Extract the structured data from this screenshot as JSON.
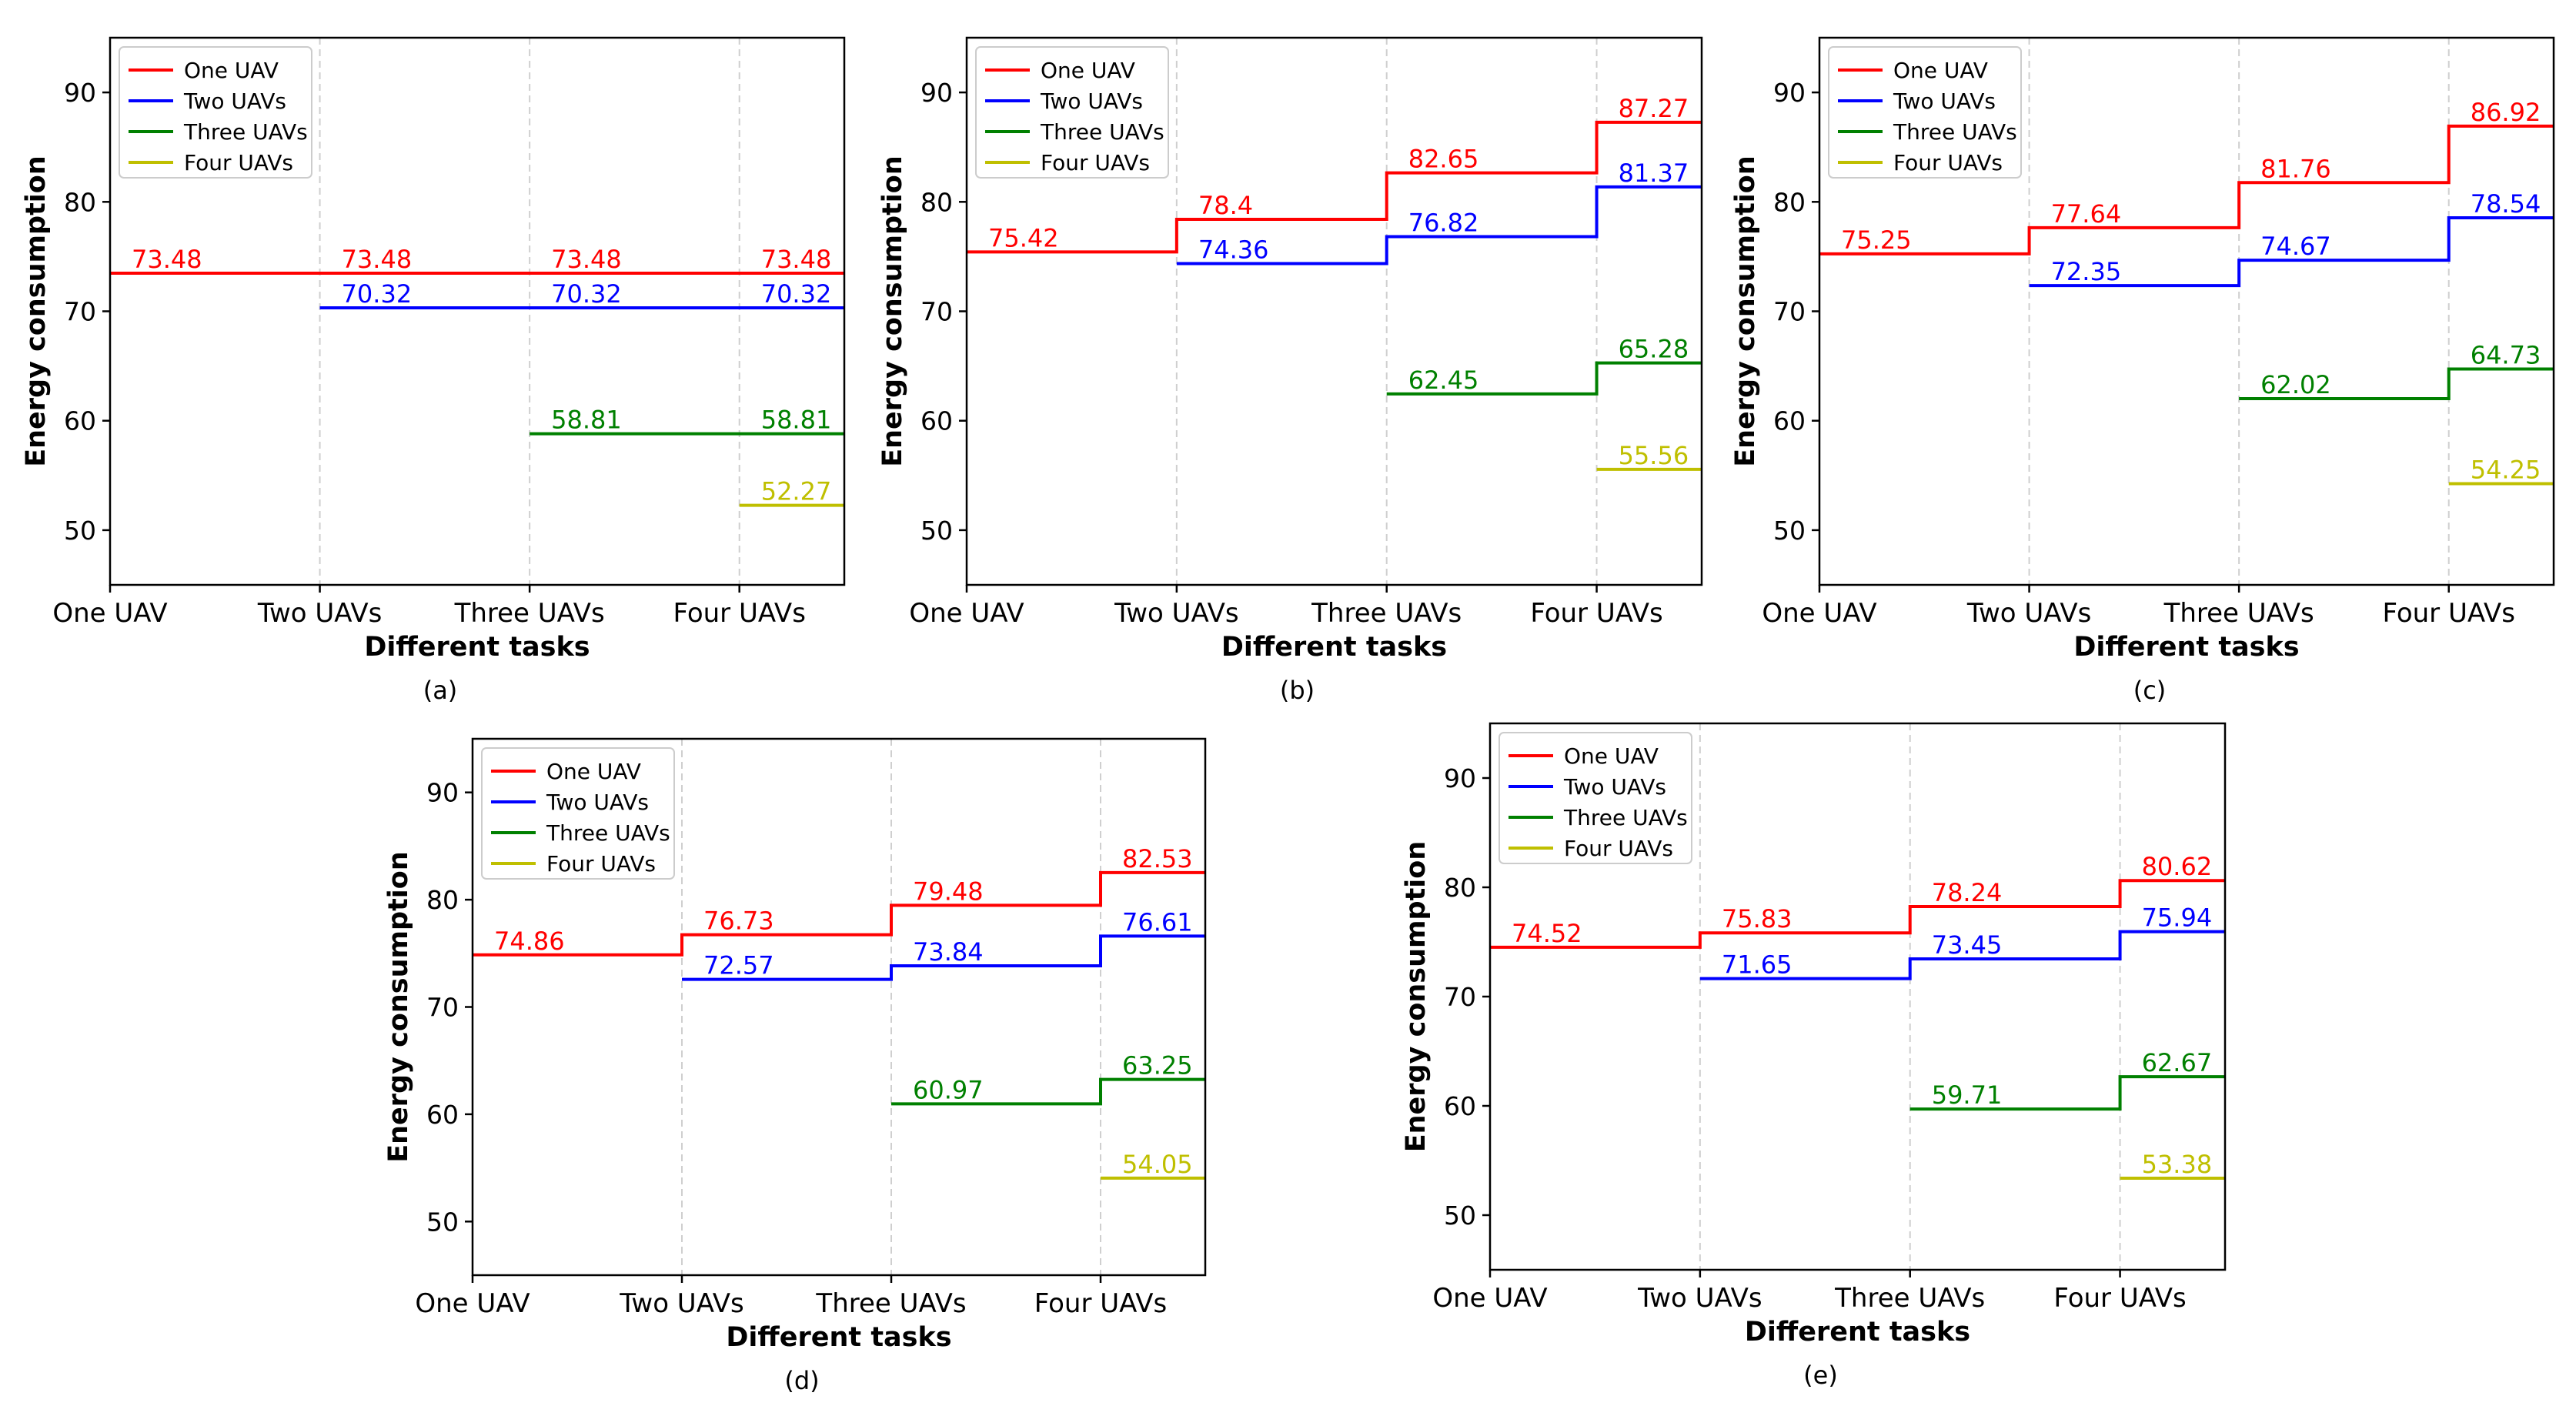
{
  "chart_data": [
    {
      "type": "line",
      "subtitle": "(a)",
      "xlabel": "Different tasks",
      "ylabel": "Energy consumption",
      "categories": [
        "One UAV",
        "Two UAVs",
        "Three UAVs",
        "Four UAVs"
      ],
      "yticks": [
        50,
        60,
        70,
        80,
        90
      ],
      "ylim": [
        45,
        95
      ],
      "legend": "top-left",
      "series": [
        {
          "name": "One UAV",
          "color": "#ff0000",
          "values": [
            73.48,
            73.48,
            73.48,
            73.48
          ],
          "labels": [
            "73.48",
            "73.48",
            "73.48",
            "73.48"
          ]
        },
        {
          "name": "Two UAVs",
          "color": "#0000ff",
          "values": [
            null,
            70.32,
            70.32,
            70.32
          ],
          "labels": [
            null,
            "70.32",
            "70.32",
            "70.32"
          ]
        },
        {
          "name": "Three UAVs",
          "color": "#008000",
          "values": [
            null,
            null,
            58.81,
            58.81
          ],
          "labels": [
            null,
            null,
            "58.81",
            "58.81"
          ]
        },
        {
          "name": "Four UAVs",
          "color": "#bfbf00",
          "values": [
            null,
            null,
            null,
            52.27
          ],
          "labels": [
            null,
            null,
            null,
            "52.27"
          ]
        }
      ]
    },
    {
      "type": "line",
      "subtitle": "(b)",
      "xlabel": "Different tasks",
      "ylabel": "Energy consumption",
      "categories": [
        "One UAV",
        "Two UAVs",
        "Three UAVs",
        "Four UAVs"
      ],
      "yticks": [
        50,
        60,
        70,
        80,
        90
      ],
      "ylim": [
        45,
        95
      ],
      "legend": "top-left",
      "series": [
        {
          "name": "One UAV",
          "color": "#ff0000",
          "values": [
            75.42,
            78.4,
            82.65,
            87.27
          ],
          "labels": [
            "75.42",
            "78.4",
            "82.65",
            "87.27"
          ]
        },
        {
          "name": "Two UAVs",
          "color": "#0000ff",
          "values": [
            null,
            74.36,
            76.82,
            81.37
          ],
          "labels": [
            null,
            "74.36",
            "76.82",
            "81.37"
          ]
        },
        {
          "name": "Three UAVs",
          "color": "#008000",
          "values": [
            null,
            null,
            62.45,
            65.28
          ],
          "labels": [
            null,
            null,
            "62.45",
            "65.28"
          ]
        },
        {
          "name": "Four UAVs",
          "color": "#bfbf00",
          "values": [
            null,
            null,
            null,
            55.56
          ],
          "labels": [
            null,
            null,
            null,
            "55.56"
          ]
        }
      ]
    },
    {
      "type": "line",
      "subtitle": "(c)",
      "xlabel": "Different tasks",
      "ylabel": "Energy consumption",
      "categories": [
        "One UAV",
        "Two UAVs",
        "Three UAVs",
        "Four UAVs"
      ],
      "yticks": [
        50,
        60,
        70,
        80,
        90
      ],
      "ylim": [
        45,
        95
      ],
      "legend": "top-left",
      "series": [
        {
          "name": "One UAV",
          "color": "#ff0000",
          "values": [
            75.25,
            77.64,
            81.76,
            86.92
          ],
          "labels": [
            "75.25",
            "77.64",
            "81.76",
            "86.92"
          ]
        },
        {
          "name": "Two UAVs",
          "color": "#0000ff",
          "values": [
            null,
            72.35,
            74.67,
            78.54
          ],
          "labels": [
            null,
            "72.35",
            "74.67",
            "78.54"
          ]
        },
        {
          "name": "Three UAVs",
          "color": "#008000",
          "values": [
            null,
            null,
            62.02,
            64.73
          ],
          "labels": [
            null,
            null,
            "62.02",
            "64.73"
          ]
        },
        {
          "name": "Four UAVs",
          "color": "#bfbf00",
          "values": [
            null,
            null,
            null,
            54.25
          ],
          "labels": [
            null,
            null,
            null,
            "54.25"
          ]
        }
      ]
    },
    {
      "type": "line",
      "subtitle": "(d)",
      "xlabel": "Different tasks",
      "ylabel": "Energy consumption",
      "categories": [
        "One UAV",
        "Two UAVs",
        "Three UAVs",
        "Four UAVs"
      ],
      "yticks": [
        50,
        60,
        70,
        80,
        90
      ],
      "ylim": [
        45,
        95
      ],
      "legend": "top-left",
      "series": [
        {
          "name": "One UAV",
          "color": "#ff0000",
          "values": [
            74.86,
            76.73,
            79.48,
            82.53
          ],
          "labels": [
            "74.86",
            "76.73",
            "79.48",
            "82.53"
          ]
        },
        {
          "name": "Two UAVs",
          "color": "#0000ff",
          "values": [
            null,
            72.57,
            73.84,
            76.61
          ],
          "labels": [
            null,
            "72.57",
            "73.84",
            "76.61"
          ]
        },
        {
          "name": "Three UAVs",
          "color": "#008000",
          "values": [
            null,
            null,
            60.97,
            63.25
          ],
          "labels": [
            null,
            null,
            "60.97",
            "63.25"
          ]
        },
        {
          "name": "Four UAVs",
          "color": "#bfbf00",
          "values": [
            null,
            null,
            null,
            54.05
          ],
          "labels": [
            null,
            null,
            null,
            "54.05"
          ]
        }
      ]
    },
    {
      "type": "line",
      "subtitle": "(e)",
      "xlabel": "Different tasks",
      "ylabel": "Energy consumption",
      "categories": [
        "One UAV",
        "Two UAVs",
        "Three UAVs",
        "Four UAVs"
      ],
      "yticks": [
        50,
        60,
        70,
        80,
        90
      ],
      "ylim": [
        45,
        95
      ],
      "legend": "top-left",
      "series": [
        {
          "name": "One UAV",
          "color": "#ff0000",
          "values": [
            74.52,
            75.83,
            78.24,
            80.62
          ],
          "labels": [
            "74.52",
            "75.83",
            "78.24",
            "80.62"
          ]
        },
        {
          "name": "Two UAVs",
          "color": "#0000ff",
          "values": [
            null,
            71.65,
            73.45,
            75.94
          ],
          "labels": [
            null,
            "71.65",
            "73.45",
            "75.94"
          ]
        },
        {
          "name": "Three UAVs",
          "color": "#008000",
          "values": [
            null,
            null,
            59.71,
            62.67
          ],
          "labels": [
            null,
            null,
            "59.71",
            "62.67"
          ]
        },
        {
          "name": "Four UAVs",
          "color": "#bfbf00",
          "values": [
            null,
            null,
            null,
            53.38
          ],
          "labels": [
            null,
            null,
            null,
            "53.38"
          ]
        }
      ]
    }
  ]
}
